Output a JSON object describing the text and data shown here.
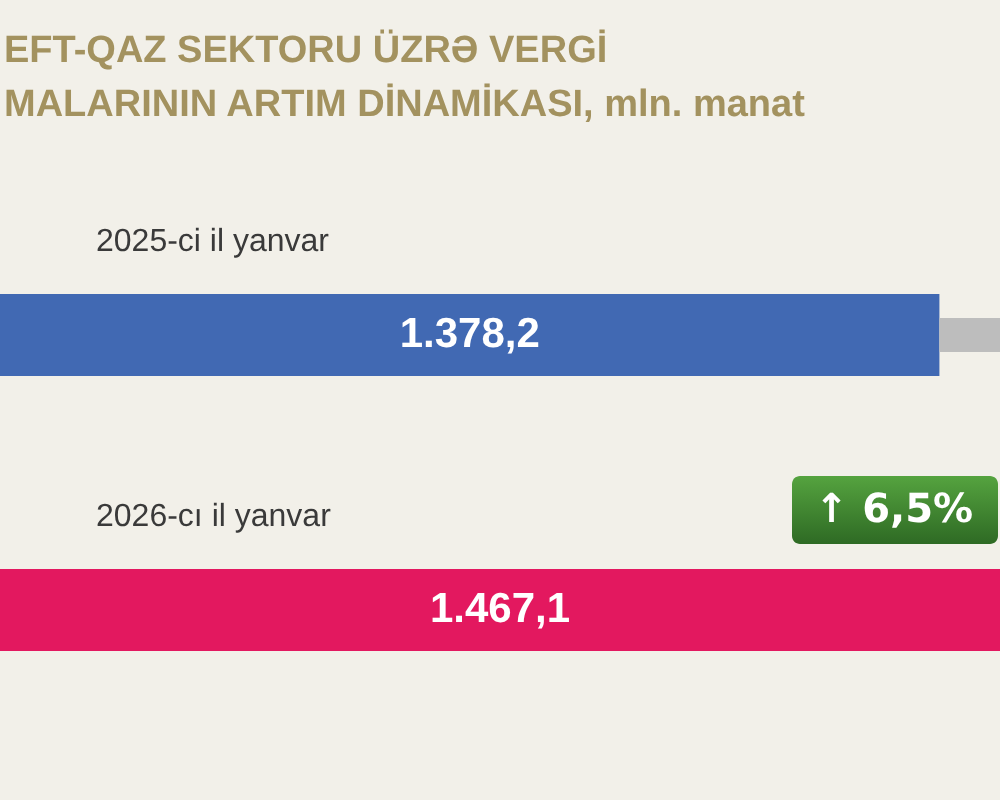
{
  "chart_data": {
    "type": "bar",
    "orientation": "horizontal",
    "stacked": true,
    "title": "EFT-QAZ SEKTORU ÜZRƏ VERGİ\nMALARININ ARTIM DİNAMİKASI, mln. manat",
    "categories": [
      "2025-ci il yanvar",
      "2026-cı il yanvar"
    ],
    "series": [
      {
        "values": [
          1378.2,
          1467.1
        ],
        "colors": [
          "#4169b3",
          "#e3185f"
        ],
        "value_labels": [
          "1.378,2",
          "1.467,1"
        ]
      },
      {
        "values": [
          88.9,
          null
        ],
        "color": "#bdbdbd"
      }
    ],
    "annotations": [
      "↑ 6,5%"
    ]
  }
}
